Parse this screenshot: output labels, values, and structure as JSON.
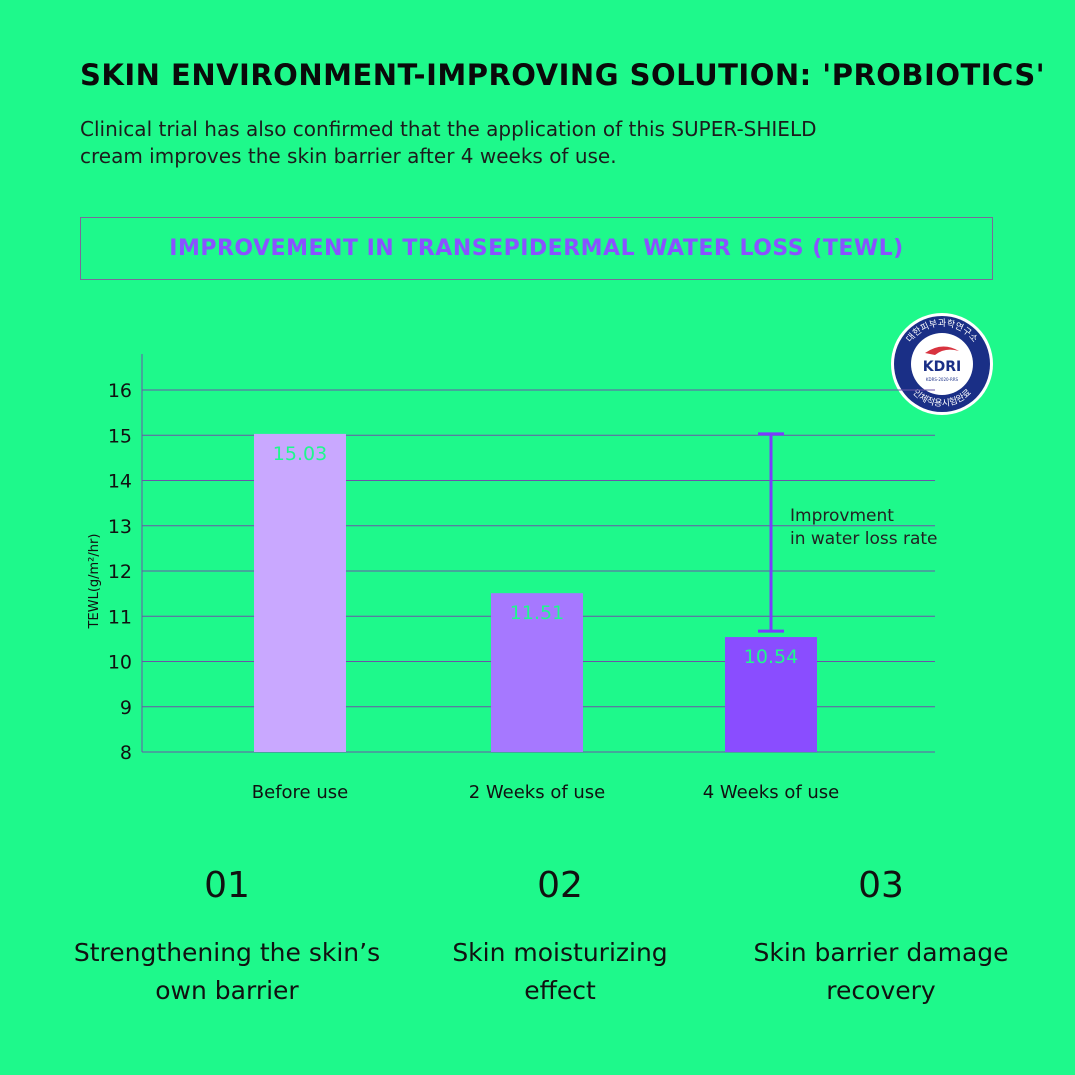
{
  "header": {
    "title": "SKIN ENVIRONMENT-IMPROVING SOLUTION: 'PROBIOTICS'",
    "subtitle_lines": [
      "Clinical trial has also confirmed that the application of this SUPER-SHIELD",
      "cream improves the skin barrier after 4 weeks of use."
    ]
  },
  "banner": {
    "text": "IMPROVEMENT IN TRANSEPIDERMAL WATER LOSS (TEWL)"
  },
  "badge": {
    "main": "KDRI",
    "ring_top": "대한피부과학연구소",
    "ring_bottom": "인체적용시험완료",
    "code": "KDRS-2020-RRS"
  },
  "chart_data": {
    "type": "bar",
    "categories": [
      "Before use",
      "2 Weeks of use",
      "4 Weeks of use"
    ],
    "values": [
      15.03,
      11.51,
      10.54
    ],
    "value_labels": [
      "15.03",
      "11.51",
      "10.54"
    ],
    "ylabel": "TEWL(g/m²/hr)",
    "ylim": [
      8,
      16
    ],
    "yticks": [
      8,
      9,
      10,
      11,
      12,
      13,
      14,
      15,
      16
    ],
    "grid": true,
    "bar_colors": [
      "#c9a8ff",
      "#a678ff",
      "#8a4dff"
    ],
    "value_label_colors": [
      "#1ef98b",
      "#1ef98b",
      "#1ef98b"
    ],
    "annotation": {
      "lines": [
        "Improvment",
        "in water loss rate"
      ],
      "from_value": 15.03,
      "to_value": 10.54,
      "category_index": 2
    }
  },
  "items": [
    {
      "number": "01",
      "label_lines": [
        "Strengthening the skin’s",
        "own barrier"
      ]
    },
    {
      "number": "02",
      "label_lines": [
        "Skin moisturizing",
        "effect"
      ]
    },
    {
      "number": "03",
      "label_lines": [
        "Skin barrier damage",
        "recovery"
      ]
    }
  ]
}
